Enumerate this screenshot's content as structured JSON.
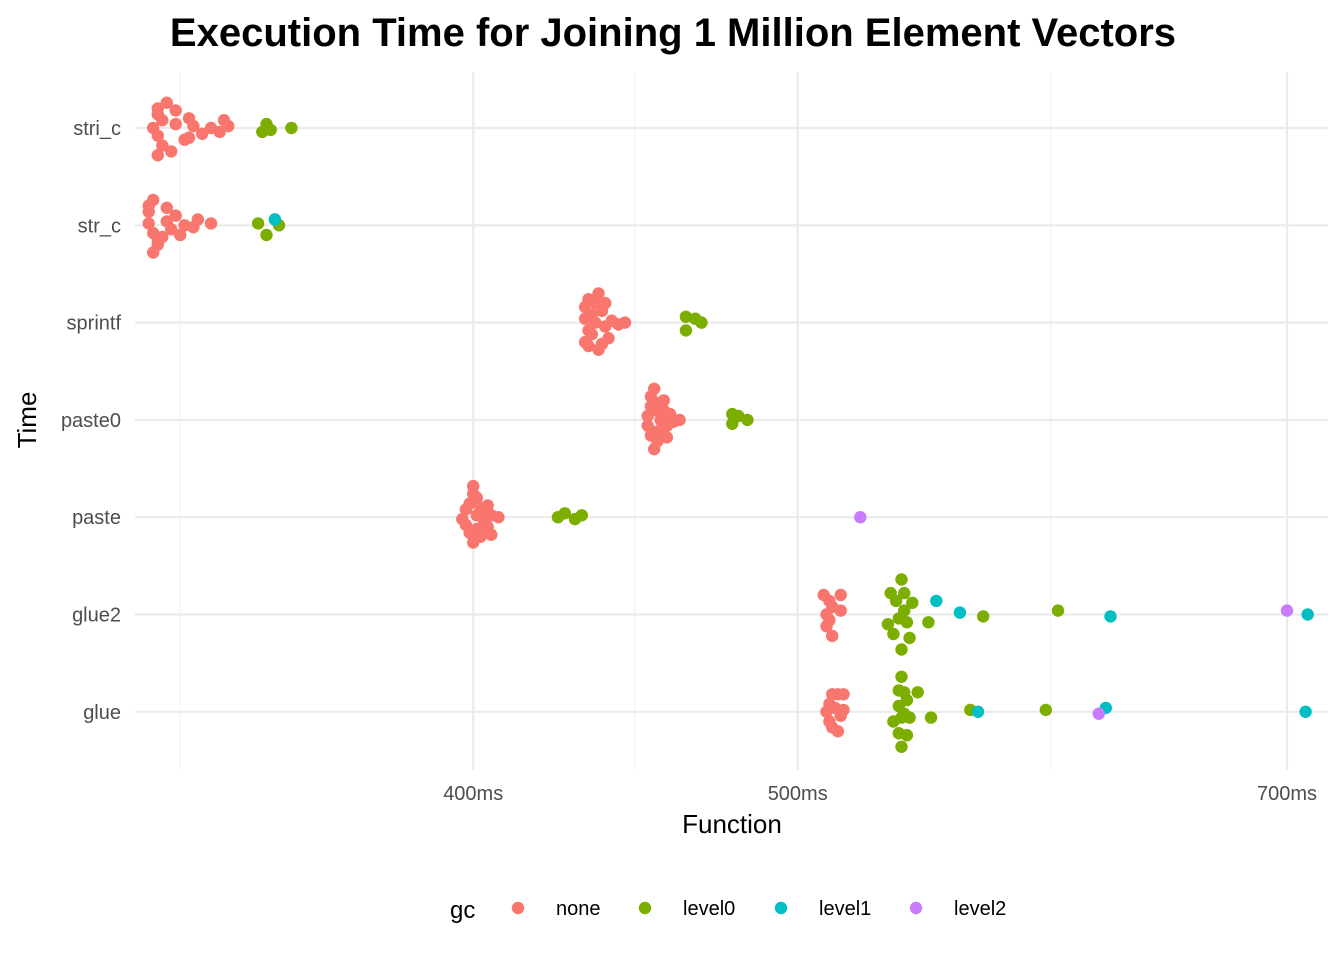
{
  "chart_data": {
    "type": "scatter",
    "title": "Execution Time for Joining 1 Million Element Vectors",
    "xlabel": "Function",
    "ylabel": "Time",
    "x_scale": "log",
    "x_ticks": [
      {
        "value": 400,
        "label": "400ms"
      },
      {
        "value": 500,
        "label": "500ms"
      },
      {
        "value": 700,
        "label": "700ms"
      }
    ],
    "x_minor_ticks": [
      327,
      447,
      595
    ],
    "xlim": [
      317,
      720
    ],
    "categories": [
      "glue",
      "glue2",
      "paste",
      "paste0",
      "sprintf",
      "str_c",
      "stri_c"
    ],
    "grid": true,
    "legend": {
      "title": "gc",
      "position": "bottom"
    },
    "series": [
      {
        "name": "none",
        "color": "#F8766D",
        "points": [
          {
            "y": "stri_c",
            "x": 322,
            "jitter": -0.28
          },
          {
            "y": "stri_c",
            "x": 323,
            "jitter": -0.18
          },
          {
            "y": "stri_c",
            "x": 322,
            "jitter": -0.08
          },
          {
            "y": "stri_c",
            "x": 321,
            "jitter": 0.0
          },
          {
            "y": "stri_c",
            "x": 323,
            "jitter": 0.08
          },
          {
            "y": "stri_c",
            "x": 322,
            "jitter": 0.2
          },
          {
            "y": "stri_c",
            "x": 324,
            "jitter": 0.26
          },
          {
            "y": "stri_c",
            "x": 325,
            "jitter": -0.24
          },
          {
            "y": "stri_c",
            "x": 326,
            "jitter": 0.04
          },
          {
            "y": "stri_c",
            "x": 328,
            "jitter": -0.12
          },
          {
            "y": "stri_c",
            "x": 329,
            "jitter": 0.1
          },
          {
            "y": "stri_c",
            "x": 330,
            "jitter": 0.02
          },
          {
            "y": "stri_c",
            "x": 332,
            "jitter": -0.06
          },
          {
            "y": "stri_c",
            "x": 334,
            "jitter": 0.0
          },
          {
            "y": "stri_c",
            "x": 336,
            "jitter": -0.04
          },
          {
            "y": "stri_c",
            "x": 337,
            "jitter": 0.08
          },
          {
            "y": "stri_c",
            "x": 338,
            "jitter": 0.02
          },
          {
            "y": "stri_c",
            "x": 322,
            "jitter": 0.14
          },
          {
            "y": "stri_c",
            "x": 329,
            "jitter": -0.1
          },
          {
            "y": "stri_c",
            "x": 326,
            "jitter": 0.18
          },
          {
            "y": "str_c",
            "x": 320,
            "jitter": 0.2
          },
          {
            "y": "str_c",
            "x": 321,
            "jitter": 0.26
          },
          {
            "y": "str_c",
            "x": 320,
            "jitter": 0.14
          },
          {
            "y": "str_c",
            "x": 320,
            "jitter": 0.02
          },
          {
            "y": "str_c",
            "x": 321,
            "jitter": -0.08
          },
          {
            "y": "str_c",
            "x": 322,
            "jitter": -0.2
          },
          {
            "y": "str_c",
            "x": 321,
            "jitter": -0.28
          },
          {
            "y": "str_c",
            "x": 323,
            "jitter": -0.12
          },
          {
            "y": "str_c",
            "x": 324,
            "jitter": 0.04
          },
          {
            "y": "str_c",
            "x": 325,
            "jitter": -0.04
          },
          {
            "y": "str_c",
            "x": 326,
            "jitter": 0.1
          },
          {
            "y": "str_c",
            "x": 327,
            "jitter": -0.1
          },
          {
            "y": "str_c",
            "x": 328,
            "jitter": 0.0
          },
          {
            "y": "str_c",
            "x": 330,
            "jitter": -0.02
          },
          {
            "y": "str_c",
            "x": 331,
            "jitter": 0.06
          },
          {
            "y": "str_c",
            "x": 334,
            "jitter": 0.02
          },
          {
            "y": "str_c",
            "x": 324,
            "jitter": 0.18
          },
          {
            "y": "str_c",
            "x": 322,
            "jitter": -0.16
          },
          {
            "y": "sprintf",
            "x": 432,
            "jitter": -0.2
          },
          {
            "y": "sprintf",
            "x": 433,
            "jitter": -0.08
          },
          {
            "y": "sprintf",
            "x": 432,
            "jitter": 0.04
          },
          {
            "y": "sprintf",
            "x": 432,
            "jitter": 0.16
          },
          {
            "y": "sprintf",
            "x": 433,
            "jitter": 0.24
          },
          {
            "y": "sprintf",
            "x": 434,
            "jitter": -0.12
          },
          {
            "y": "sprintf",
            "x": 435,
            "jitter": 0.0
          },
          {
            "y": "sprintf",
            "x": 436,
            "jitter": -0.28
          },
          {
            "y": "sprintf",
            "x": 437,
            "jitter": 0.12
          },
          {
            "y": "sprintf",
            "x": 436,
            "jitter": 0.3
          },
          {
            "y": "sprintf",
            "x": 438,
            "jitter": -0.04
          },
          {
            "y": "sprintf",
            "x": 438,
            "jitter": 0.2
          },
          {
            "y": "sprintf",
            "x": 439,
            "jitter": -0.16
          },
          {
            "y": "sprintf",
            "x": 440,
            "jitter": 0.02
          },
          {
            "y": "sprintf",
            "x": 442,
            "jitter": -0.02
          },
          {
            "y": "sprintf",
            "x": 444,
            "jitter": 0.0
          },
          {
            "y": "sprintf",
            "x": 437,
            "jitter": -0.22
          },
          {
            "y": "sprintf",
            "x": 434,
            "jitter": 0.08
          },
          {
            "y": "sprintf",
            "x": 435,
            "jitter": 0.2
          },
          {
            "y": "sprintf",
            "x": 433,
            "jitter": -0.24
          },
          {
            "y": "paste0",
            "x": 452,
            "jitter": -0.16
          },
          {
            "y": "paste0",
            "x": 451,
            "jitter": -0.06
          },
          {
            "y": "paste0",
            "x": 451,
            "jitter": 0.04
          },
          {
            "y": "paste0",
            "x": 452,
            "jitter": 0.14
          },
          {
            "y": "paste0",
            "x": 452,
            "jitter": 0.24
          },
          {
            "y": "paste0",
            "x": 453,
            "jitter": 0.32
          },
          {
            "y": "paste0",
            "x": 453,
            "jitter": -0.3
          },
          {
            "y": "paste0",
            "x": 454,
            "jitter": -0.22
          },
          {
            "y": "paste0",
            "x": 455,
            "jitter": -0.1
          },
          {
            "y": "paste0",
            "x": 455,
            "jitter": 0.0
          },
          {
            "y": "paste0",
            "x": 456,
            "jitter": 0.1
          },
          {
            "y": "paste0",
            "x": 456,
            "jitter": 0.2
          },
          {
            "y": "paste0",
            "x": 457,
            "jitter": -0.06
          },
          {
            "y": "paste0",
            "x": 458,
            "jitter": 0.06
          },
          {
            "y": "paste0",
            "x": 459,
            "jitter": -0.02
          },
          {
            "y": "paste0",
            "x": 461,
            "jitter": 0.0
          },
          {
            "y": "paste0",
            "x": 453,
            "jitter": 0.1
          },
          {
            "y": "paste0",
            "x": 454,
            "jitter": -0.12
          },
          {
            "y": "paste0",
            "x": 455,
            "jitter": 0.18
          },
          {
            "y": "paste0",
            "x": 457,
            "jitter": -0.18
          },
          {
            "y": "paste",
            "x": 397,
            "jitter": -0.02
          },
          {
            "y": "paste",
            "x": 398,
            "jitter": 0.08
          },
          {
            "y": "paste",
            "x": 398,
            "jitter": -0.08
          },
          {
            "y": "paste",
            "x": 399,
            "jitter": 0.14
          },
          {
            "y": "paste",
            "x": 399,
            "jitter": -0.16
          },
          {
            "y": "paste",
            "x": 400,
            "jitter": 0.32
          },
          {
            "y": "paste",
            "x": 400,
            "jitter": -0.26
          },
          {
            "y": "paste",
            "x": 401,
            "jitter": 0.02
          },
          {
            "y": "paste",
            "x": 401,
            "jitter": 0.2
          },
          {
            "y": "paste",
            "x": 401,
            "jitter": -0.12
          },
          {
            "y": "paste",
            "x": 402,
            "jitter": 0.1
          },
          {
            "y": "paste",
            "x": 402,
            "jitter": -0.2
          },
          {
            "y": "paste",
            "x": 403,
            "jitter": -0.04
          },
          {
            "y": "paste",
            "x": 403,
            "jitter": 0.06
          },
          {
            "y": "paste",
            "x": 404,
            "jitter": 0.12
          },
          {
            "y": "paste",
            "x": 404,
            "jitter": -0.1
          },
          {
            "y": "paste",
            "x": 405,
            "jitter": 0.02
          },
          {
            "y": "paste",
            "x": 405,
            "jitter": -0.18
          },
          {
            "y": "paste",
            "x": 407,
            "jitter": 0.0
          },
          {
            "y": "paste",
            "x": 400,
            "jitter": 0.24
          },
          {
            "y": "glue2",
            "x": 509,
            "jitter": 0.2
          },
          {
            "y": "glue2",
            "x": 510,
            "jitter": 0.0
          },
          {
            "y": "glue2",
            "x": 510,
            "jitter": -0.12
          },
          {
            "y": "glue2",
            "x": 511,
            "jitter": 0.14
          },
          {
            "y": "glue2",
            "x": 511,
            "jitter": -0.06
          },
          {
            "y": "glue2",
            "x": 512,
            "jitter": -0.22
          },
          {
            "y": "glue2",
            "x": 515,
            "jitter": 0.2
          },
          {
            "y": "glue2",
            "x": 515,
            "jitter": 0.04
          },
          {
            "y": "glue2",
            "x": 512,
            "jitter": 0.08
          },
          {
            "y": "glue",
            "x": 510,
            "jitter": 0.0
          },
          {
            "y": "glue",
            "x": 511,
            "jitter": -0.1
          },
          {
            "y": "glue",
            "x": 511,
            "jitter": 0.08
          },
          {
            "y": "glue",
            "x": 512,
            "jitter": 0.18
          },
          {
            "y": "glue",
            "x": 512,
            "jitter": -0.16
          },
          {
            "y": "glue",
            "x": 513,
            "jitter": 0.04
          },
          {
            "y": "glue",
            "x": 514,
            "jitter": -0.2
          },
          {
            "y": "glue",
            "x": 514,
            "jitter": 0.18
          },
          {
            "y": "glue",
            "x": 515,
            "jitter": -0.04
          },
          {
            "y": "glue",
            "x": 516,
            "jitter": 0.18
          },
          {
            "y": "glue",
            "x": 516,
            "jitter": 0.02
          }
        ]
      },
      {
        "name": "level0",
        "color": "#7CAE00",
        "points": [
          {
            "y": "stri_c",
            "x": 346,
            "jitter": -0.04
          },
          {
            "y": "stri_c",
            "x": 347,
            "jitter": 0.04
          },
          {
            "y": "stri_c",
            "x": 348,
            "jitter": -0.02
          },
          {
            "y": "stri_c",
            "x": 353,
            "jitter": 0.0
          },
          {
            "y": "str_c",
            "x": 345,
            "jitter": 0.02
          },
          {
            "y": "str_c",
            "x": 347,
            "jitter": -0.1
          },
          {
            "y": "str_c",
            "x": 349,
            "jitter": 0.06
          },
          {
            "y": "str_c",
            "x": 350,
            "jitter": 0.0
          },
          {
            "y": "sprintf",
            "x": 463,
            "jitter": -0.08
          },
          {
            "y": "sprintf",
            "x": 463,
            "jitter": 0.06
          },
          {
            "y": "sprintf",
            "x": 466,
            "jitter": 0.04
          },
          {
            "y": "sprintf",
            "x": 468,
            "jitter": 0.0
          },
          {
            "y": "paste0",
            "x": 478,
            "jitter": 0.06
          },
          {
            "y": "paste0",
            "x": 478,
            "jitter": -0.04
          },
          {
            "y": "paste0",
            "x": 480,
            "jitter": 0.04
          },
          {
            "y": "paste0",
            "x": 483,
            "jitter": 0.0
          },
          {
            "y": "paste",
            "x": 424,
            "jitter": 0.0
          },
          {
            "y": "paste",
            "x": 426,
            "jitter": 0.04
          },
          {
            "y": "paste",
            "x": 429,
            "jitter": -0.02
          },
          {
            "y": "paste",
            "x": 431,
            "jitter": 0.02
          },
          {
            "y": "glue2",
            "x": 537,
            "jitter": 0.36
          },
          {
            "y": "glue2",
            "x": 533,
            "jitter": 0.22
          },
          {
            "y": "glue2",
            "x": 538,
            "jitter": 0.22
          },
          {
            "y": "glue2",
            "x": 535,
            "jitter": 0.14
          },
          {
            "y": "glue2",
            "x": 541,
            "jitter": 0.12
          },
          {
            "y": "glue2",
            "x": 538,
            "jitter": 0.04
          },
          {
            "y": "glue2",
            "x": 536,
            "jitter": -0.04
          },
          {
            "y": "glue2",
            "x": 532,
            "jitter": -0.1
          },
          {
            "y": "glue2",
            "x": 539,
            "jitter": -0.08
          },
          {
            "y": "glue2",
            "x": 547,
            "jitter": -0.08
          },
          {
            "y": "glue2",
            "x": 534,
            "jitter": -0.2
          },
          {
            "y": "glue2",
            "x": 540,
            "jitter": -0.24
          },
          {
            "y": "glue2",
            "x": 537,
            "jitter": -0.36
          },
          {
            "y": "glue2",
            "x": 568,
            "jitter": -0.02
          },
          {
            "y": "glue2",
            "x": 598,
            "jitter": 0.04
          },
          {
            "y": "glue",
            "x": 537,
            "jitter": 0.36
          },
          {
            "y": "glue",
            "x": 536,
            "jitter": 0.22
          },
          {
            "y": "glue",
            "x": 538,
            "jitter": 0.2
          },
          {
            "y": "glue",
            "x": 543,
            "jitter": 0.2
          },
          {
            "y": "glue",
            "x": 539,
            "jitter": 0.12
          },
          {
            "y": "glue",
            "x": 536,
            "jitter": 0.06
          },
          {
            "y": "glue",
            "x": 538,
            "jitter": -0.02
          },
          {
            "y": "glue",
            "x": 537,
            "jitter": -0.06
          },
          {
            "y": "glue",
            "x": 534,
            "jitter": -0.1
          },
          {
            "y": "glue",
            "x": 540,
            "jitter": -0.06
          },
          {
            "y": "glue",
            "x": 548,
            "jitter": -0.06
          },
          {
            "y": "glue",
            "x": 536,
            "jitter": -0.22
          },
          {
            "y": "glue",
            "x": 539,
            "jitter": -0.24
          },
          {
            "y": "glue",
            "x": 537,
            "jitter": -0.36
          },
          {
            "y": "glue",
            "x": 563,
            "jitter": 0.02
          },
          {
            "y": "glue",
            "x": 593,
            "jitter": 0.02
          }
        ]
      },
      {
        "name": "level1",
        "color": "#00BFC4",
        "points": [
          {
            "y": "str_c",
            "x": 349,
            "jitter": 0.06
          },
          {
            "y": "glue2",
            "x": 550,
            "jitter": 0.14
          },
          {
            "y": "glue2",
            "x": 559,
            "jitter": 0.02
          },
          {
            "y": "glue2",
            "x": 620,
            "jitter": -0.02
          },
          {
            "y": "glue2",
            "x": 710,
            "jitter": 0.0
          },
          {
            "y": "glue",
            "x": 566,
            "jitter": 0.0
          },
          {
            "y": "glue",
            "x": 618,
            "jitter": 0.04
          },
          {
            "y": "glue",
            "x": 709,
            "jitter": 0.0
          }
        ]
      },
      {
        "name": "level2",
        "color": "#C77CFF",
        "points": [
          {
            "y": "paste",
            "x": 522,
            "jitter": 0.0
          },
          {
            "y": "glue2",
            "x": 700,
            "jitter": 0.04
          },
          {
            "y": "glue",
            "x": 615,
            "jitter": -0.02
          }
        ]
      }
    ]
  }
}
